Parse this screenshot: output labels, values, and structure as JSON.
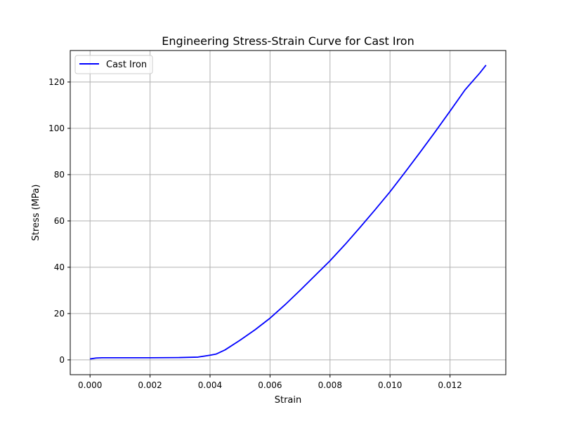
{
  "chart_data": {
    "type": "line",
    "title": "Engineering Stress-Strain Curve for Cast Iron",
    "xlabel": "Strain",
    "ylabel": "Stress (MPa)",
    "xlim": [
      -0.00066,
      0.01386
    ],
    "ylim": [
      -6.4,
      133.6
    ],
    "xticks": [
      0.0,
      0.002,
      0.004,
      0.006,
      0.008,
      0.01,
      0.012
    ],
    "xtick_labels": [
      "0.000",
      "0.002",
      "0.004",
      "0.006",
      "0.008",
      "0.010",
      "0.012"
    ],
    "yticks": [
      0,
      20,
      40,
      60,
      80,
      100,
      120
    ],
    "ytick_labels": [
      "0",
      "20",
      "40",
      "60",
      "80",
      "100",
      "120"
    ],
    "grid": true,
    "legend": {
      "position": "upper-left"
    },
    "series": [
      {
        "name": "Cast Iron",
        "color": "#0000ff",
        "x": [
          0.0,
          0.0002,
          0.0004,
          0.001,
          0.002,
          0.003,
          0.0036,
          0.004,
          0.0042,
          0.0045,
          0.005,
          0.0055,
          0.006,
          0.0065,
          0.007,
          0.0075,
          0.008,
          0.0085,
          0.009,
          0.0095,
          0.01,
          0.0105,
          0.011,
          0.0115,
          0.012,
          0.0125,
          0.013,
          0.0132
        ],
        "y": [
          0.4,
          0.8,
          0.9,
          0.9,
          0.9,
          1.0,
          1.2,
          2.0,
          2.5,
          4.3,
          8.5,
          13.0,
          18.0,
          23.8,
          30.0,
          36.4,
          42.8,
          49.8,
          57.2,
          64.8,
          72.6,
          81.0,
          89.6,
          98.4,
          107.4,
          116.6,
          124.0,
          127.3
        ]
      }
    ]
  }
}
